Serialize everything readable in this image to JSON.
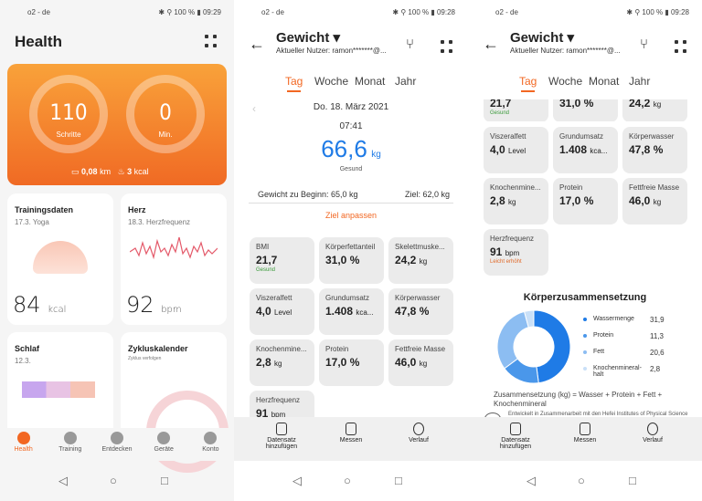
{
  "status": {
    "carrier": "o2 - de",
    "battery": "100 %",
    "time1": "09:29",
    "time2": "09:28",
    "time3": "09:28"
  },
  "p1": {
    "title": "Health",
    "steps": {
      "value": "110",
      "label": "Schritte"
    },
    "minutes": {
      "value": "0",
      "label": "Min."
    },
    "distance": "0,08",
    "distance_unit": "km",
    "calories": "3",
    "calories_unit": "kcal",
    "training": {
      "title": "Trainingsdaten",
      "sub": "17.3. Yoga",
      "value": "84",
      "unit": "kcal"
    },
    "heart": {
      "title": "Herz",
      "sub": "18.3. Herzfrequenz",
      "value": "92",
      "unit": "bpm"
    },
    "sleep": {
      "title": "Schlaf",
      "sub": "12.3."
    },
    "cycle": {
      "title": "Zykluskalender",
      "sub": "Zyklus verfolgen"
    },
    "nav": [
      "Health",
      "Training",
      "Entdecken",
      "Geräte",
      "Konto"
    ]
  },
  "weight": {
    "title": "Gewicht",
    "user": "Aktueller Nutzer: ramon*******@...",
    "tabs": [
      "Tag",
      "Woche",
      "Monat",
      "Jahr"
    ],
    "date": "Do. 18. März 2021",
    "time": "07:41",
    "value": "66,6",
    "unit": "kg",
    "status": "Gesund",
    "start": "Gewicht zu Beginn: 65,0 kg",
    "goal": "Ziel: 62,0 kg",
    "adjust": "Ziel anpassen",
    "tiles": [
      {
        "name": "BMI",
        "value": "21,7",
        "unit": "",
        "state": "Gesund"
      },
      {
        "name": "Körperfettanteil",
        "value": "31,0 %",
        "unit": "",
        "state": ""
      },
      {
        "name": "Skelettmuske...",
        "value": "24,2",
        "unit": "kg",
        "state": ""
      },
      {
        "name": "Viszeralfett",
        "value": "4,0",
        "unit": "Level",
        "state": ""
      },
      {
        "name": "Grundumsatz",
        "value": "1.408",
        "unit": "kca...",
        "state": ""
      },
      {
        "name": "Körperwasser",
        "value": "47,8 %",
        "unit": "",
        "state": ""
      },
      {
        "name": "Knochenmine...",
        "value": "2,8",
        "unit": "kg",
        "state": ""
      },
      {
        "name": "Protein",
        "value": "17,0 %",
        "unit": "",
        "state": ""
      },
      {
        "name": "Fettfreie Masse",
        "value": "46,0",
        "unit": "kg",
        "state": ""
      },
      {
        "name": "Herzfrequenz",
        "value": "91",
        "unit": "bpm",
        "state": "Leicht erhöht"
      }
    ],
    "partial_row": {
      "v1": "21,7",
      "v2": "31,0 %",
      "v3": "24,2",
      "u3": "kg",
      "s1": "Gesund"
    },
    "bottom": [
      "Datensatz hinzufügen",
      "Messen",
      "Verlauf"
    ]
  },
  "composition": {
    "title": "Körperzusammensetzung",
    "items": [
      {
        "label": "Wassermenge",
        "value": "31,9",
        "color": "#1f7be6"
      },
      {
        "label": "Protein",
        "value": "11,3",
        "color": "#4a97ea"
      },
      {
        "label": "Fett",
        "value": "20,6",
        "color": "#8cbdf2"
      },
      {
        "label": "Knochenmineral-halt",
        "value": "2,8",
        "color": "#c9e0f8"
      }
    ],
    "formula": "Zusammensetzung (kg) = Wasser + Protein + Fett + Knochenmineral",
    "credit": "Entwickelt in Zusammenarbeit mit den Hefei Institutes of Physical Science an der Chinese Academy of Sciences"
  }
}
